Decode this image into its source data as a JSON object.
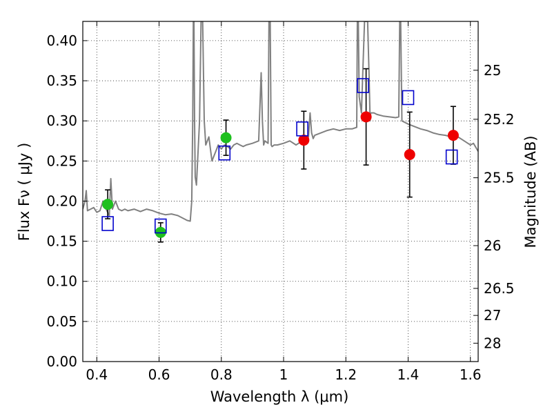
{
  "chart_data": {
    "type": "scatter",
    "title": "",
    "xlabel": "Wavelength  λ (μm)",
    "ylabel": "Flux  Fν  ( μJy )",
    "ylabel_right": "Magnitude (AB)",
    "xlim": [
      0.355,
      1.625
    ],
    "ylim": [
      0.0,
      0.424
    ],
    "xticks": [
      0.4,
      0.6,
      0.8,
      1.0,
      1.2,
      1.4,
      1.6
    ],
    "xtick_labels": [
      "0.4",
      "0.6",
      "0.8",
      "1",
      "1.2",
      "1.4",
      "1.6"
    ],
    "yticks": [
      0.0,
      0.05,
      0.1,
      0.15,
      0.2,
      0.25,
      0.3,
      0.35,
      0.4
    ],
    "ytick_labels": [
      "0.00",
      "0.05",
      "0.10",
      "0.15",
      "0.20",
      "0.25",
      "0.30",
      "0.35",
      "0.40"
    ],
    "right_ticks": [
      {
        "label": "25",
        "flux": 0.3631
      },
      {
        "label": "25.2",
        "flux": 0.302
      },
      {
        "label": "25.5",
        "flux": 0.2291
      },
      {
        "label": "26",
        "flux": 0.1445
      },
      {
        "label": "26.5",
        "flux": 0.0912
      },
      {
        "label": "27",
        "flux": 0.0575
      },
      {
        "label": "28",
        "flux": 0.0229
      }
    ],
    "grid": true,
    "colors": {
      "spectrum": "#808080",
      "green": "#1ec01e",
      "red": "#ee0000",
      "model": "#0000cc",
      "errorbar": "#000000"
    },
    "series": [
      {
        "name": "Model spectrum",
        "kind": "line",
        "x": [
          0.355,
          0.362,
          0.366,
          0.37,
          0.38,
          0.39,
          0.4,
          0.41,
          0.42,
          0.43,
          0.44,
          0.445,
          0.45,
          0.455,
          0.46,
          0.47,
          0.48,
          0.49,
          0.5,
          0.52,
          0.54,
          0.56,
          0.58,
          0.6,
          0.62,
          0.64,
          0.66,
          0.68,
          0.69,
          0.7,
          0.705,
          0.708,
          0.71,
          0.712,
          0.714,
          0.716,
          0.72,
          0.73,
          0.735,
          0.74,
          0.745,
          0.75,
          0.76,
          0.77,
          0.78,
          0.79,
          0.8,
          0.81,
          0.82,
          0.83,
          0.84,
          0.85,
          0.86,
          0.87,
          0.88,
          0.9,
          0.92,
          0.928,
          0.932,
          0.936,
          0.94,
          0.95,
          0.953,
          0.955,
          0.957,
          0.96,
          0.963,
          0.97,
          0.98,
          1.0,
          1.02,
          1.04,
          1.06,
          1.08,
          1.085,
          1.09,
          1.095,
          1.1,
          1.12,
          1.14,
          1.16,
          1.18,
          1.2,
          1.22,
          1.235,
          1.237,
          1.24,
          1.243,
          1.25,
          1.26,
          1.27,
          1.275,
          1.278,
          1.28,
          1.283,
          1.29,
          1.3,
          1.32,
          1.34,
          1.36,
          1.37,
          1.373,
          1.376,
          1.38,
          1.39,
          1.4,
          1.42,
          1.44,
          1.46,
          1.48,
          1.5,
          1.52,
          1.54,
          1.56,
          1.58,
          1.6,
          1.61,
          1.625
        ],
        "y": [
          0.19,
          0.2,
          0.213,
          0.188,
          0.19,
          0.192,
          0.186,
          0.188,
          0.2,
          0.19,
          0.182,
          0.228,
          0.19,
          0.195,
          0.2,
          0.19,
          0.188,
          0.19,
          0.188,
          0.19,
          0.187,
          0.19,
          0.188,
          0.185,
          0.183,
          0.184,
          0.182,
          0.178,
          0.176,
          0.175,
          0.2,
          0.3,
          0.424,
          0.424,
          0.3,
          0.23,
          0.22,
          0.3,
          0.424,
          0.424,
          0.3,
          0.27,
          0.28,
          0.25,
          0.26,
          0.27,
          0.265,
          0.27,
          0.268,
          0.265,
          0.27,
          0.272,
          0.27,
          0.268,
          0.27,
          0.272,
          0.275,
          0.36,
          0.3,
          0.27,
          0.275,
          0.272,
          0.424,
          0.424,
          0.424,
          0.27,
          0.268,
          0.27,
          0.27,
          0.272,
          0.275,
          0.27,
          0.275,
          0.28,
          0.31,
          0.285,
          0.278,
          0.282,
          0.285,
          0.288,
          0.29,
          0.288,
          0.29,
          0.29,
          0.292,
          0.424,
          0.424,
          0.33,
          0.31,
          0.424,
          0.424,
          0.35,
          0.3,
          0.31,
          0.31,
          0.31,
          0.308,
          0.306,
          0.305,
          0.304,
          0.305,
          0.424,
          0.424,
          0.3,
          0.298,
          0.296,
          0.293,
          0.29,
          0.288,
          0.285,
          0.283,
          0.282,
          0.28,
          0.28,
          0.275,
          0.27,
          0.272,
          0.262
        ]
      },
      {
        "name": "Green photometry",
        "kind": "points",
        "marker": "circle",
        "x": [
          0.435,
          0.605,
          0.815
        ],
        "y": [
          0.196,
          0.161,
          0.279
        ],
        "yerr": [
          0.018,
          0.012,
          0.022
        ]
      },
      {
        "name": "Red photometry",
        "kind": "points",
        "marker": "circle",
        "x": [
          1.065,
          1.265,
          1.405,
          1.545
        ],
        "y": [
          0.276,
          0.305,
          0.258,
          0.282
        ],
        "yerr": [
          0.036,
          0.06,
          0.053,
          0.036
        ]
      },
      {
        "name": "Model magnitudes",
        "kind": "points",
        "marker": "open-square",
        "x": [
          0.435,
          0.605,
          0.81,
          1.06,
          1.255,
          1.4,
          1.54
        ],
        "y": [
          0.172,
          0.169,
          0.26,
          0.29,
          0.344,
          0.329,
          0.255
        ]
      }
    ]
  }
}
